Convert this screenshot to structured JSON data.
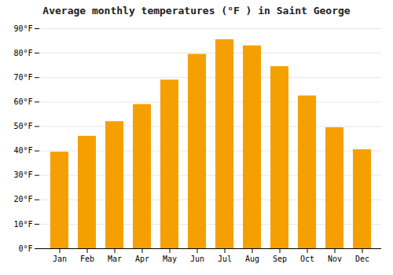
{
  "chart_data": {
    "type": "bar",
    "title": "Average monthly temperatures (°F ) in Saint George",
    "categories": [
      "Jan",
      "Feb",
      "Mar",
      "Apr",
      "May",
      "Jun",
      "Jul",
      "Aug",
      "Sep",
      "Oct",
      "Nov",
      "Dec"
    ],
    "values": [
      39.5,
      46.0,
      52.0,
      59.0,
      69.0,
      79.5,
      85.5,
      83.0,
      74.5,
      62.5,
      49.5,
      40.5
    ],
    "color": "#F5A000",
    "ylim": [
      0,
      90
    ],
    "yticks": [
      {
        "value": 0,
        "label": "0°F"
      },
      {
        "value": 10,
        "label": "10°F"
      },
      {
        "value": 20,
        "label": "20°F"
      },
      {
        "value": 30,
        "label": "30°F"
      },
      {
        "value": 40,
        "label": "40°F"
      },
      {
        "value": 50,
        "label": "50°F"
      },
      {
        "value": 60,
        "label": "60°F"
      },
      {
        "value": 70,
        "label": "70°F"
      },
      {
        "value": 80,
        "label": "80°F"
      },
      {
        "value": 90,
        "label": "90°F"
      }
    ],
    "grid": true
  }
}
